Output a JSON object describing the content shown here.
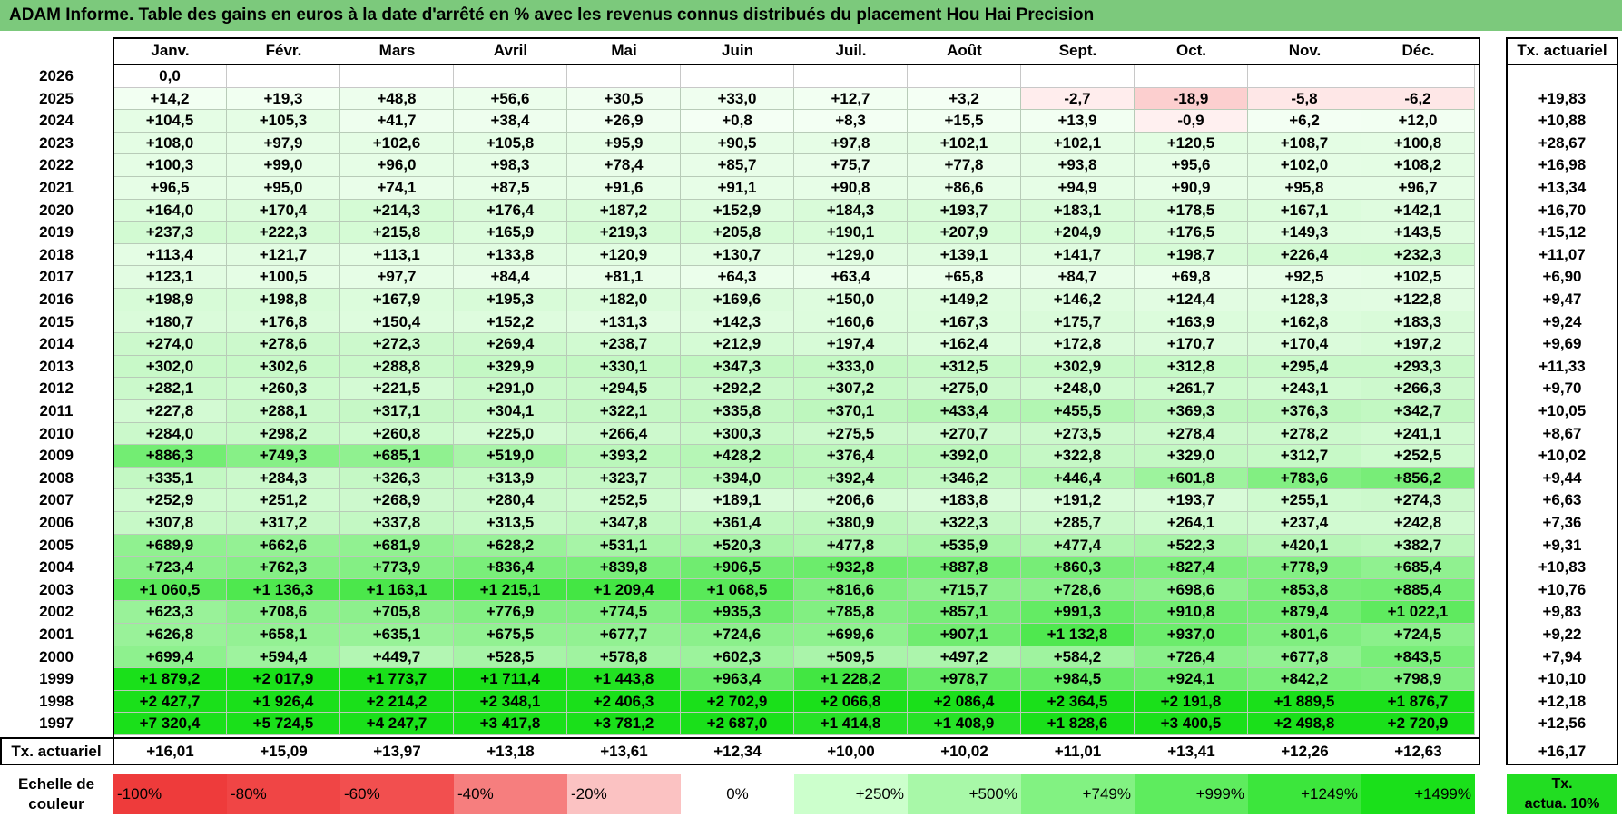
{
  "title": "ADAM Informe. Table des gains en euros à la date d'arrêté en % avec les revenus connus distribués du placement Hou Hai Precision",
  "months": [
    "Janv.",
    "Févr.",
    "Mars",
    "Avril",
    "Mai",
    "Juin",
    "Juil.",
    "Août",
    "Sept.",
    "Oct.",
    "Nov.",
    "Déc."
  ],
  "rate_header": "Tx. actuariel",
  "rows": [
    {
      "year": "2026",
      "cells": [
        "0,0",
        "",
        "",
        "",
        "",
        "",
        "",
        "",
        "",
        "",
        "",
        ""
      ],
      "rate": ""
    },
    {
      "year": "2025",
      "cells": [
        "+14,2",
        "+19,3",
        "+48,8",
        "+56,6",
        "+30,5",
        "+33,0",
        "+12,7",
        "+3,2",
        "-2,7",
        "-18,9",
        "-5,8",
        "-6,2"
      ],
      "rate": "+19,83"
    },
    {
      "year": "2024",
      "cells": [
        "+104,5",
        "+105,3",
        "+41,7",
        "+38,4",
        "+26,9",
        "+0,8",
        "+8,3",
        "+15,5",
        "+13,9",
        "-0,9",
        "+6,2",
        "+12,0"
      ],
      "rate": "+10,88"
    },
    {
      "year": "2023",
      "cells": [
        "+108,0",
        "+97,9",
        "+102,6",
        "+105,8",
        "+95,9",
        "+90,5",
        "+97,8",
        "+102,1",
        "+102,1",
        "+120,5",
        "+108,7",
        "+100,8"
      ],
      "rate": "+28,67"
    },
    {
      "year": "2022",
      "cells": [
        "+100,3",
        "+99,0",
        "+96,0",
        "+98,3",
        "+78,4",
        "+85,7",
        "+75,7",
        "+77,8",
        "+93,8",
        "+95,6",
        "+102,0",
        "+108,2"
      ],
      "rate": "+16,98"
    },
    {
      "year": "2021",
      "cells": [
        "+96,5",
        "+95,0",
        "+74,1",
        "+87,5",
        "+91,6",
        "+91,1",
        "+90,8",
        "+86,6",
        "+94,9",
        "+90,9",
        "+95,8",
        "+96,7"
      ],
      "rate": "+13,34"
    },
    {
      "year": "2020",
      "cells": [
        "+164,0",
        "+170,4",
        "+214,3",
        "+176,4",
        "+187,2",
        "+152,9",
        "+184,3",
        "+193,7",
        "+183,1",
        "+178,5",
        "+167,1",
        "+142,1"
      ],
      "rate": "+16,70"
    },
    {
      "year": "2019",
      "cells": [
        "+237,3",
        "+222,3",
        "+215,8",
        "+165,9",
        "+219,3",
        "+205,8",
        "+190,1",
        "+207,9",
        "+204,9",
        "+176,5",
        "+149,3",
        "+143,5"
      ],
      "rate": "+15,12"
    },
    {
      "year": "2018",
      "cells": [
        "+113,4",
        "+121,7",
        "+113,1",
        "+133,8",
        "+120,9",
        "+130,7",
        "+129,0",
        "+139,1",
        "+141,7",
        "+198,7",
        "+226,4",
        "+232,3"
      ],
      "rate": "+11,07"
    },
    {
      "year": "2017",
      "cells": [
        "+123,1",
        "+100,5",
        "+97,7",
        "+84,4",
        "+81,1",
        "+64,3",
        "+63,4",
        "+65,8",
        "+84,7",
        "+69,8",
        "+92,5",
        "+102,5"
      ],
      "rate": "+6,90"
    },
    {
      "year": "2016",
      "cells": [
        "+198,9",
        "+198,8",
        "+167,9",
        "+195,3",
        "+182,0",
        "+169,6",
        "+150,0",
        "+149,2",
        "+146,2",
        "+124,4",
        "+128,3",
        "+122,8"
      ],
      "rate": "+9,47"
    },
    {
      "year": "2015",
      "cells": [
        "+180,7",
        "+176,8",
        "+150,4",
        "+152,2",
        "+131,3",
        "+142,3",
        "+160,6",
        "+167,3",
        "+175,7",
        "+163,9",
        "+162,8",
        "+183,3"
      ],
      "rate": "+9,24"
    },
    {
      "year": "2014",
      "cells": [
        "+274,0",
        "+278,6",
        "+272,3",
        "+269,4",
        "+238,7",
        "+212,9",
        "+197,4",
        "+162,4",
        "+172,8",
        "+170,7",
        "+170,4",
        "+197,2"
      ],
      "rate": "+9,69"
    },
    {
      "year": "2013",
      "cells": [
        "+302,0",
        "+302,6",
        "+288,8",
        "+329,9",
        "+330,1",
        "+347,3",
        "+333,0",
        "+312,5",
        "+302,9",
        "+312,8",
        "+295,4",
        "+293,3"
      ],
      "rate": "+11,33"
    },
    {
      "year": "2012",
      "cells": [
        "+282,1",
        "+260,3",
        "+221,5",
        "+291,0",
        "+294,5",
        "+292,2",
        "+307,2",
        "+275,0",
        "+248,0",
        "+261,7",
        "+243,1",
        "+266,3"
      ],
      "rate": "+9,70"
    },
    {
      "year": "2011",
      "cells": [
        "+227,8",
        "+288,1",
        "+317,1",
        "+304,1",
        "+322,1",
        "+335,8",
        "+370,1",
        "+433,4",
        "+455,5",
        "+369,3",
        "+376,3",
        "+342,7"
      ],
      "rate": "+10,05"
    },
    {
      "year": "2010",
      "cells": [
        "+284,0",
        "+298,2",
        "+260,8",
        "+225,0",
        "+266,4",
        "+300,3",
        "+275,5",
        "+270,7",
        "+273,5",
        "+278,4",
        "+278,2",
        "+241,1"
      ],
      "rate": "+8,67"
    },
    {
      "year": "2009",
      "cells": [
        "+886,3",
        "+749,3",
        "+685,1",
        "+519,0",
        "+393,2",
        "+428,2",
        "+376,4",
        "+392,0",
        "+322,8",
        "+329,0",
        "+312,7",
        "+252,5"
      ],
      "rate": "+10,02"
    },
    {
      "year": "2008",
      "cells": [
        "+335,1",
        "+284,3",
        "+326,3",
        "+313,9",
        "+323,7",
        "+394,0",
        "+392,4",
        "+346,2",
        "+446,4",
        "+601,8",
        "+783,6",
        "+856,2"
      ],
      "rate": "+9,44"
    },
    {
      "year": "2007",
      "cells": [
        "+252,9",
        "+251,2",
        "+268,9",
        "+280,4",
        "+252,5",
        "+189,1",
        "+206,6",
        "+183,8",
        "+191,2",
        "+193,7",
        "+255,1",
        "+274,3"
      ],
      "rate": "+6,63"
    },
    {
      "year": "2006",
      "cells": [
        "+307,8",
        "+317,2",
        "+337,8",
        "+313,5",
        "+347,8",
        "+361,4",
        "+380,9",
        "+322,3",
        "+285,7",
        "+264,1",
        "+237,4",
        "+242,8"
      ],
      "rate": "+7,36"
    },
    {
      "year": "2005",
      "cells": [
        "+689,9",
        "+662,6",
        "+681,9",
        "+628,2",
        "+531,1",
        "+520,3",
        "+477,8",
        "+535,9",
        "+477,4",
        "+522,3",
        "+420,1",
        "+382,7"
      ],
      "rate": "+9,31"
    },
    {
      "year": "2004",
      "cells": [
        "+723,4",
        "+762,3",
        "+773,9",
        "+836,4",
        "+839,8",
        "+906,5",
        "+932,8",
        "+887,8",
        "+860,3",
        "+827,4",
        "+778,9",
        "+685,4"
      ],
      "rate": "+10,83"
    },
    {
      "year": "2003",
      "cells": [
        "+1 060,5",
        "+1 136,3",
        "+1 163,1",
        "+1 215,1",
        "+1 209,4",
        "+1 068,5",
        "+816,6",
        "+715,7",
        "+728,6",
        "+698,6",
        "+853,8",
        "+885,4"
      ],
      "rate": "+10,76"
    },
    {
      "year": "2002",
      "cells": [
        "+623,3",
        "+708,6",
        "+705,8",
        "+776,9",
        "+774,5",
        "+935,3",
        "+785,8",
        "+857,1",
        "+991,3",
        "+910,8",
        "+879,4",
        "+1 022,1"
      ],
      "rate": "+9,83"
    },
    {
      "year": "2001",
      "cells": [
        "+626,8",
        "+658,1",
        "+635,1",
        "+675,5",
        "+677,7",
        "+724,6",
        "+699,6",
        "+907,1",
        "+1 132,8",
        "+937,0",
        "+801,6",
        "+724,5"
      ],
      "rate": "+9,22"
    },
    {
      "year": "2000",
      "cells": [
        "+699,4",
        "+594,4",
        "+449,7",
        "+528,5",
        "+578,8",
        "+602,3",
        "+509,5",
        "+497,2",
        "+584,2",
        "+726,4",
        "+677,8",
        "+843,5"
      ],
      "rate": "+7,94"
    },
    {
      "year": "1999",
      "cells": [
        "+1 879,2",
        "+2 017,9",
        "+1 773,7",
        "+1 711,4",
        "+1 443,8",
        "+963,4",
        "+1 228,2",
        "+978,7",
        "+984,5",
        "+924,1",
        "+842,2",
        "+798,9"
      ],
      "rate": "+10,10"
    },
    {
      "year": "1998",
      "cells": [
        "+2 427,7",
        "+1 926,4",
        "+2 214,2",
        "+2 348,1",
        "+2 406,3",
        "+2 702,9",
        "+2 066,8",
        "+2 086,4",
        "+2 364,5",
        "+2 191,8",
        "+1 889,5",
        "+1 876,7"
      ],
      "rate": "+12,18"
    },
    {
      "year": "1997",
      "cells": [
        "+7 320,4",
        "+5 724,5",
        "+4 247,7",
        "+3 417,8",
        "+3 781,2",
        "+2 687,0",
        "+1 414,8",
        "+1 408,9",
        "+1 828,6",
        "+3 400,5",
        "+2 498,8",
        "+2 720,9"
      ],
      "rate": "+12,56"
    }
  ],
  "footer": {
    "label": "Tx. actuariel",
    "cells": [
      "+16,01",
      "+15,09",
      "+13,97",
      "+13,18",
      "+13,61",
      "+12,34",
      "+10,00",
      "+10,02",
      "+11,01",
      "+13,41",
      "+12,26",
      "+12,63"
    ],
    "rate": "+16,17"
  },
  "scale": {
    "label_line1": "Echelle de",
    "label_line2": "couleur",
    "items": [
      {
        "text": "-100%",
        "color": "#ee3b3b",
        "align": "left"
      },
      {
        "text": "-80%",
        "color": "#f04545",
        "align": "left"
      },
      {
        "text": "-60%",
        "color": "#f24f4f",
        "align": "left"
      },
      {
        "text": "-40%",
        "color": "#f67e7e",
        "align": "left"
      },
      {
        "text": "-20%",
        "color": "#fbc2c2",
        "align": "left"
      },
      {
        "text": "0%",
        "color": "#ffffff",
        "align": "center"
      },
      {
        "text": "+250%",
        "color": "#ccffcc",
        "align": "right"
      },
      {
        "text": "+500%",
        "color": "#a8f8a8",
        "align": "right"
      },
      {
        "text": "+749%",
        "color": "#82f282",
        "align": "right"
      },
      {
        "text": "+999%",
        "color": "#5eec5e",
        "align": "right"
      },
      {
        "text": "+1249%",
        "color": "#3ce63c",
        "align": "right"
      },
      {
        "text": "+1499%",
        "color": "#1ae01a",
        "align": "right"
      }
    ],
    "rate_line1": "Tx.",
    "rate_line2": "actua. 10%",
    "rate_color": "#22dd22"
  }
}
